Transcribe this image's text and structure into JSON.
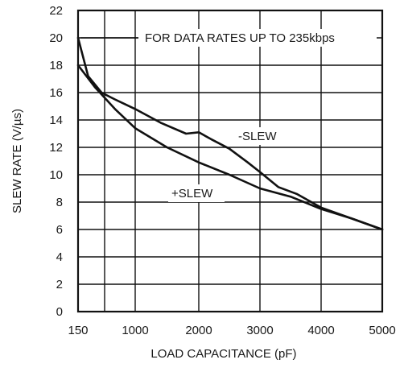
{
  "chart_data": {
    "type": "line",
    "xlabel": "LOAD CAPACITANCE (pF)",
    "ylabel": "SLEW RATE (V/µs)",
    "x_ticks": [
      150,
      1000,
      2000,
      3000,
      4000,
      5000
    ],
    "y_ticks": [
      0,
      2,
      4,
      6,
      8,
      10,
      12,
      14,
      16,
      18,
      20,
      22
    ],
    "xlim": [
      150,
      5000
    ],
    "ylim": [
      0,
      22
    ],
    "grid": true,
    "series": [
      {
        "name": "-SLEW",
        "x": [
          150,
          300,
          500,
          700,
          1000,
          1400,
          1800,
          2000,
          2200,
          2500,
          2800,
          3000,
          3300,
          3600,
          3800,
          4000,
          4500,
          5000
        ],
        "y": [
          20.0,
          17.2,
          16.0,
          15.5,
          14.8,
          13.8,
          13.0,
          13.1,
          12.6,
          11.9,
          10.9,
          10.2,
          9.1,
          8.6,
          8.1,
          7.6,
          6.8,
          6.0
        ]
      },
      {
        "name": "+SLEW",
        "x": [
          150,
          400,
          700,
          1000,
          1500,
          2000,
          2500,
          3000,
          3500,
          4000,
          4500,
          5000
        ],
        "y": [
          18.0,
          16.4,
          14.8,
          13.4,
          12.0,
          10.9,
          10.0,
          9.0,
          8.4,
          7.5,
          6.8,
          6.0
        ]
      }
    ],
    "annotations": {
      "note": "FOR DATA RATES UP TO 235kbps",
      "minus_label": "-SLEW",
      "plus_label": "+SLEW"
    }
  }
}
